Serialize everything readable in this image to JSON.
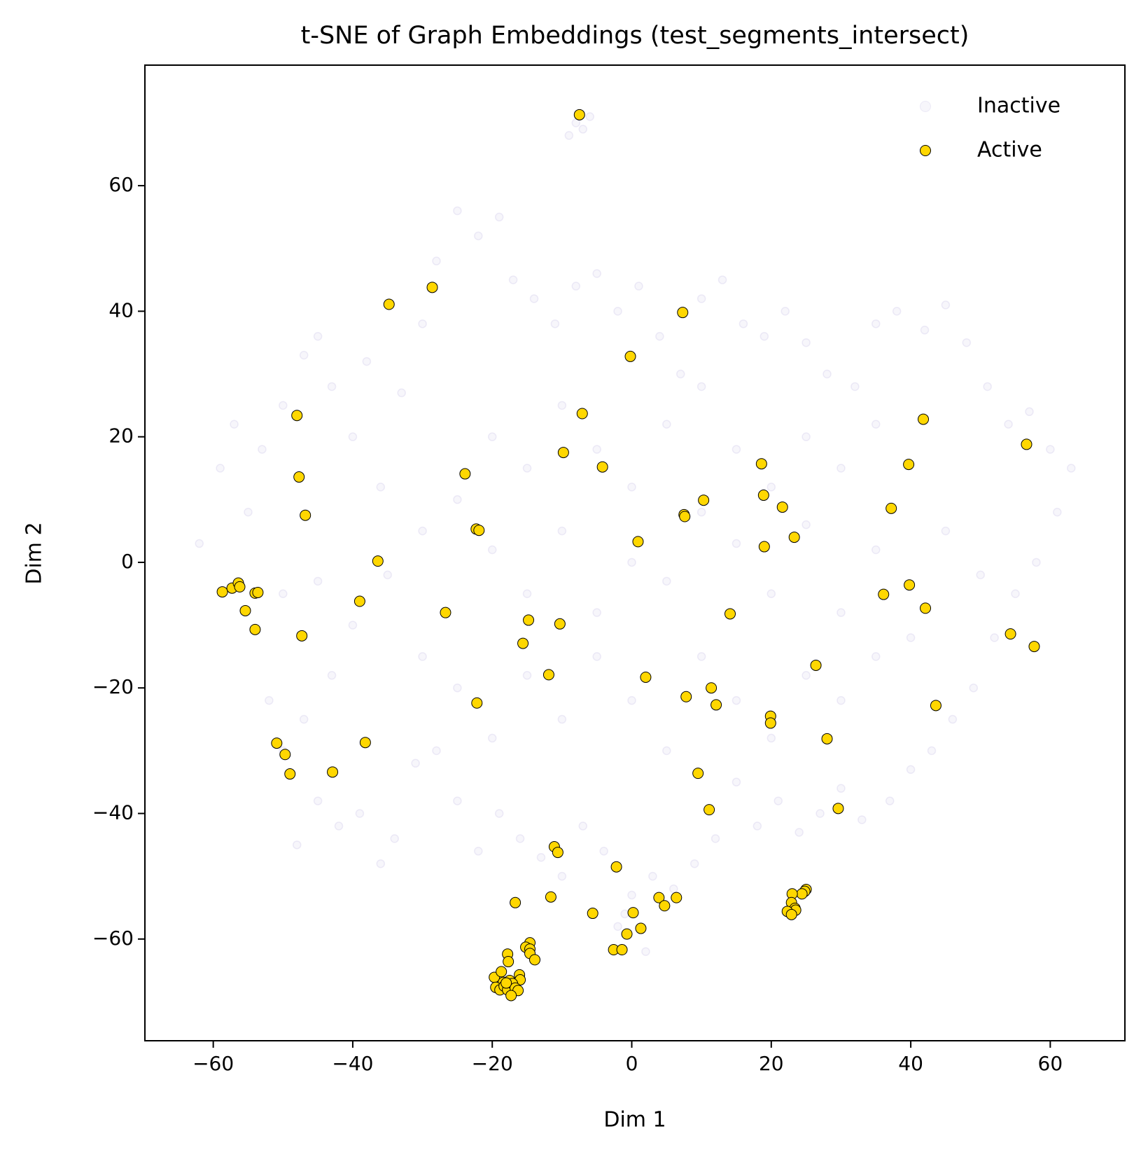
{
  "chart_data": {
    "type": "scatter",
    "title": "t-SNE of Graph Embeddings (test_segments_intersect)",
    "xlabel": "Dim 1",
    "ylabel": "Dim 2",
    "xlim": [
      -69.8,
      70.7
    ],
    "ylim": [
      -76.2,
      79.2
    ],
    "xticks": [
      {
        "value": -60,
        "label": "−60"
      },
      {
        "value": -40,
        "label": "−40"
      },
      {
        "value": -20,
        "label": "−20"
      },
      0,
      20,
      40,
      60
    ],
    "yticks": [
      {
        "value": -60,
        "label": "−60"
      },
      {
        "value": -40,
        "label": "−40"
      },
      {
        "value": -20,
        "label": "−20"
      },
      0,
      20,
      40,
      60
    ],
    "legend": "upper right",
    "series": [
      {
        "name": "Inactive",
        "color": "#a49cd6",
        "alpha": 0.18,
        "edgecolor": null,
        "x": [
          -62,
          -59,
          -57,
          -55,
          -53,
          -50,
          -47,
          -45,
          -43,
          -40,
          -38,
          -36,
          -33,
          -30,
          -28,
          -25,
          -22,
          -19,
          -17,
          -14,
          -11,
          -8,
          -5,
          -2,
          1,
          4,
          7,
          10,
          13,
          16,
          19,
          22,
          25,
          28,
          32,
          35,
          38,
          42,
          45,
          48,
          51,
          54,
          57,
          60,
          63,
          61,
          58,
          55,
          52,
          49,
          46,
          43,
          40,
          37,
          33,
          30,
          27,
          24,
          21,
          18,
          15,
          12,
          9,
          6,
          3,
          0,
          -2,
          -4,
          -7,
          -10,
          -13,
          -16,
          -19,
          -22,
          -25,
          -28,
          -31,
          -34,
          -36,
          -39,
          -42,
          -45,
          -48,
          -50,
          -52,
          -47,
          -43,
          -40,
          -45,
          -50,
          -35,
          -30,
          -25,
          -20,
          -15,
          -10,
          -5,
          0,
          5,
          10,
          15,
          20,
          25,
          30,
          35,
          40,
          45,
          50,
          -30,
          -25,
          -20,
          -15,
          -10,
          -5,
          0,
          5,
          10,
          15,
          20,
          25,
          30,
          35,
          -20,
          -15,
          -10,
          -5,
          0,
          5,
          10,
          15,
          20,
          25,
          30,
          35,
          -8,
          -9,
          -6,
          -7,
          2,
          -1
        ],
        "y": [
          3,
          15,
          22,
          8,
          18,
          25,
          33,
          36,
          28,
          20,
          32,
          12,
          27,
          38,
          48,
          56,
          52,
          55,
          45,
          42,
          38,
          44,
          46,
          40,
          44,
          36,
          30,
          42,
          45,
          38,
          36,
          40,
          35,
          30,
          28,
          38,
          40,
          37,
          41,
          35,
          28,
          22,
          24,
          18,
          15,
          8,
          0,
          -5,
          -12,
          -20,
          -25,
          -30,
          -33,
          -38,
          -41,
          -36,
          -40,
          -43,
          -38,
          -42,
          -35,
          -44,
          -48,
          -52,
          -50,
          -53,
          -58,
          -46,
          -42,
          -50,
          -47,
          -44,
          -40,
          -46,
          -38,
          -30,
          -32,
          -44,
          -48,
          -40,
          -42,
          -38,
          -45,
          -30,
          -22,
          -25,
          -18,
          -10,
          -3,
          -5,
          -2,
          5,
          10,
          2,
          -5,
          5,
          -8,
          0,
          -3,
          8,
          3,
          -5,
          6,
          -8,
          2,
          -12,
          5,
          -2,
          -15,
          -20,
          -28,
          -18,
          -25,
          -15,
          -22,
          -30,
          -15,
          -22,
          -28,
          -18,
          -22,
          -15,
          20,
          15,
          25,
          18,
          12,
          22,
          28,
          18,
          12,
          20,
          15,
          22,
          70,
          68,
          71,
          69,
          -62,
          -56
        ]
      },
      {
        "name": "Active",
        "color": "#ffd700",
        "alpha": 1,
        "edgecolor": "#000000",
        "x": [
          -7.5,
          -28.6,
          -34.8,
          7.3,
          -0.2,
          -48,
          -7.1,
          41.8,
          56.6,
          -9.8,
          -4.2,
          18.6,
          39.7,
          -23.9,
          -47.7,
          18.9,
          10.3,
          21.6,
          37.2,
          7.5,
          7.6,
          -46.8,
          -22.3,
          -21.9,
          0.9,
          23.3,
          19,
          -36.4,
          -58.7,
          -57.3,
          -56.4,
          -56.2,
          -54,
          -53.6,
          36.1,
          39.8,
          -55.4,
          -39,
          42.1,
          -26.7,
          14.1,
          -14.8,
          -10.3,
          -54,
          -47.3,
          54.3,
          57.7,
          -15.6,
          26.4,
          -11.9,
          2,
          11.4,
          7.8,
          -22.2,
          12.1,
          43.6,
          19.9,
          19.9,
          28,
          -50.9,
          -38.2,
          -49.7,
          -49,
          -42.9,
          9.5,
          29.6,
          11.1,
          -11.1,
          -10.6,
          -2.2,
          25,
          24.8,
          24.4,
          23,
          -11.6,
          3.9,
          6.4,
          -16.7,
          4.7,
          22.9,
          23.4,
          23.5,
          22.3,
          22.9,
          -5.6,
          0.2,
          1.3,
          -0.7,
          -2.6,
          -1.4,
          -14.6,
          -15.2,
          -14.6,
          -14.6,
          -13.9,
          -17.8,
          -17.7,
          -16.1,
          -16,
          -19.7,
          -18.7,
          -18.4,
          -17.5,
          -19.5,
          -18.9,
          -18.3,
          -17.8,
          -17.1,
          -16.7,
          -16.3,
          -17.3,
          -18
        ],
        "y": [
          71.3,
          43.8,
          41.1,
          39.8,
          32.8,
          23.4,
          23.7,
          22.8,
          18.8,
          17.5,
          15.2,
          15.7,
          15.6,
          14.1,
          13.6,
          10.7,
          9.9,
          8.8,
          8.6,
          7.6,
          7.3,
          7.5,
          5.3,
          5.1,
          3.3,
          4.0,
          2.5,
          0.2,
          -4.7,
          -4.1,
          -3.3,
          -3.9,
          -4.9,
          -4.8,
          -5.1,
          -3.6,
          -7.7,
          -6.2,
          -7.3,
          -8.0,
          -8.2,
          -9.2,
          -9.8,
          -10.7,
          -11.7,
          -11.4,
          -13.4,
          -12.9,
          -16.4,
          -17.9,
          -18.3,
          -20,
          -21.4,
          -22.4,
          -22.7,
          -22.8,
          -24.5,
          -25.6,
          -28.1,
          -28.8,
          -28.7,
          -30.6,
          -33.7,
          -33.4,
          -33.6,
          -39.2,
          -39.4,
          -45.3,
          -46.2,
          -48.5,
          -52.1,
          -52.4,
          -52.8,
          -52.8,
          -53.3,
          -53.4,
          -53.4,
          -54.2,
          -54.7,
          -54.2,
          -55.1,
          -55.4,
          -55.6,
          -56.1,
          -55.9,
          -55.8,
          -58.3,
          -59.2,
          -61.7,
          -61.7,
          -60.6,
          -61.3,
          -61.6,
          -62.3,
          -63.3,
          -62.4,
          -63.6,
          -65.7,
          -66.5,
          -66.1,
          -65.2,
          -66.9,
          -66.6,
          -67.7,
          -68.1,
          -67.5,
          -68.1,
          -67.1,
          -67.8,
          -68.2,
          -69,
          -67
        ]
      }
    ]
  }
}
